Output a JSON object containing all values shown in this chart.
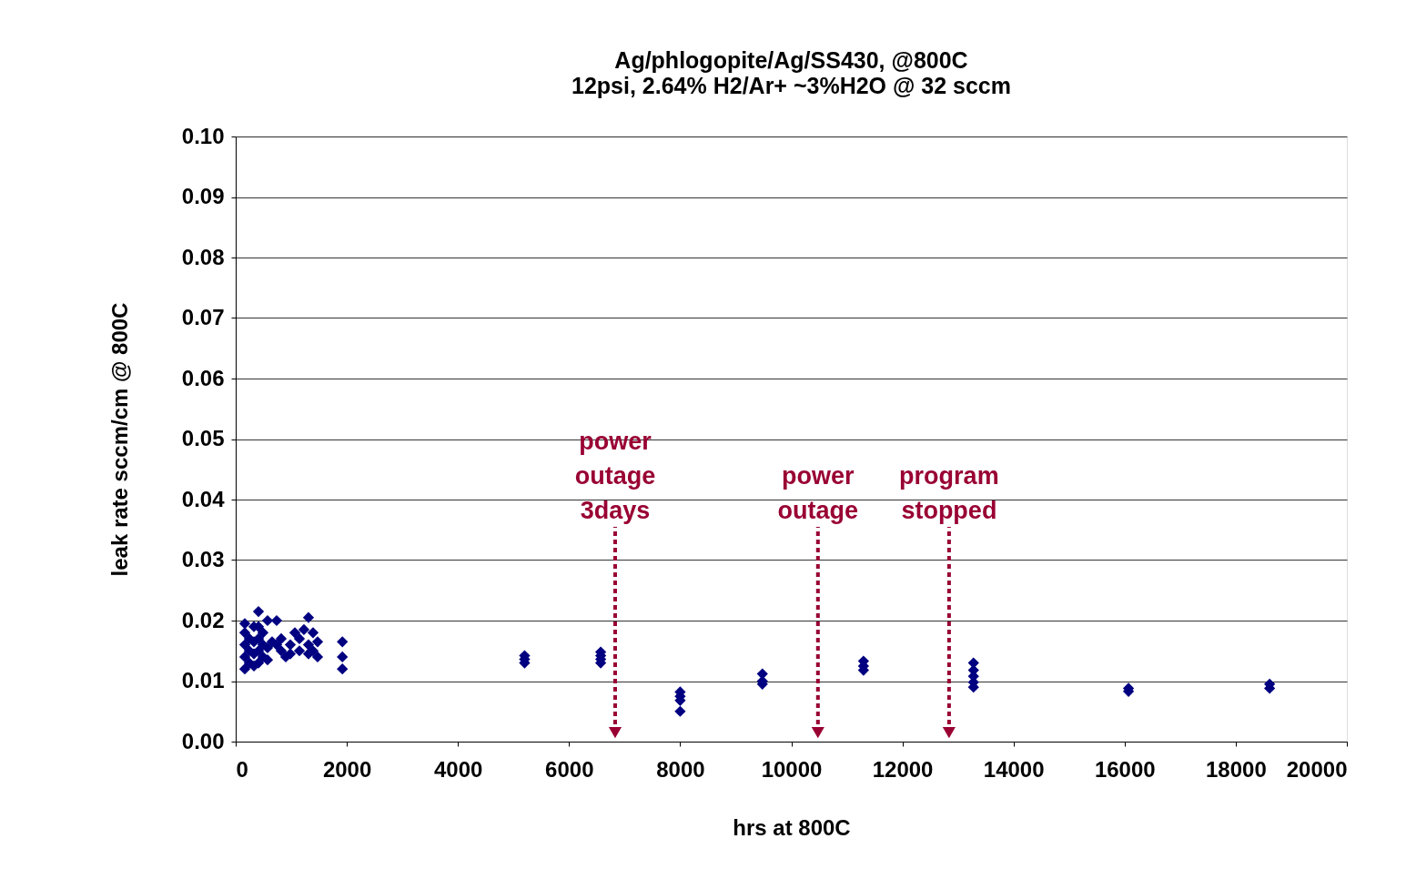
{
  "chart_data": {
    "type": "scatter",
    "title": "Ag/phlogopite/Ag/SS430, @800C",
    "subtitle": "12psi, 2.64% H2/Ar+ ~3%H2O @ 32 sccm",
    "xlabel": "hrs at 800C",
    "ylabel": "leak rate sccm/cm @ 800C",
    "xlim": [
      0,
      20000
    ],
    "xticks": [
      0,
      2000,
      4000,
      6000,
      8000,
      10000,
      12000,
      14000,
      16000,
      18000,
      20000
    ],
    "ylim": [
      0,
      0.1
    ],
    "yticks": [
      {
        "value": 0,
        "label": "0.00"
      },
      {
        "value": 0.01,
        "label": "0.01"
      },
      {
        "value": 0.02,
        "label": "0.02"
      },
      {
        "value": 0.03,
        "label": "0.03"
      },
      {
        "value": 0.04,
        "label": "0.04"
      },
      {
        "value": 0.05,
        "label": "0.05"
      },
      {
        "value": 0.06,
        "label": "0.06"
      },
      {
        "value": 0.07,
        "label": "0.07"
      },
      {
        "value": 0.08,
        "label": "0.08"
      },
      {
        "value": 0.09,
        "label": "0.09"
      },
      {
        "value": 0.1,
        "label": "0.10"
      }
    ],
    "grid": "y",
    "marker": "diamond",
    "series": [
      {
        "color": "#000080",
        "x": [
          164,
          164,
          164,
          164,
          164,
          246,
          246,
          246,
          328,
          328,
          328,
          328,
          410,
          410,
          410,
          410,
          410,
          491,
          491,
          491,
          573,
          573,
          573,
          655,
          737,
          737,
          819,
          819,
          901,
          983,
          983,
          1065,
          1147,
          1147,
          1228,
          1310,
          1310,
          1310,
          1392,
          1392,
          1474,
          1474,
          1920,
          1920,
          1920,
          5200,
          5200,
          5200,
          6570,
          6570,
          6570,
          6570,
          8000,
          8000,
          8000,
          8000,
          9480,
          9480,
          9480,
          11300,
          11300,
          11300,
          13280,
          13280,
          13280,
          13280,
          13280,
          16070,
          16070,
          18610,
          18610
        ],
        "values": [
          0.012,
          0.014,
          0.016,
          0.018,
          0.0195,
          0.013,
          0.015,
          0.017,
          0.0125,
          0.0145,
          0.0165,
          0.019,
          0.0215,
          0.013,
          0.015,
          0.017,
          0.019,
          0.014,
          0.016,
          0.018,
          0.02,
          0.0155,
          0.0135,
          0.0165,
          0.02,
          0.016,
          0.015,
          0.017,
          0.014,
          0.0145,
          0.016,
          0.018,
          0.015,
          0.017,
          0.0185,
          0.0205,
          0.016,
          0.0145,
          0.018,
          0.015,
          0.0165,
          0.014,
          0.0165,
          0.014,
          0.012,
          0.0142,
          0.0136,
          0.013,
          0.0148,
          0.0142,
          0.0136,
          0.013,
          0.0082,
          0.0075,
          0.0068,
          0.005,
          0.0112,
          0.01,
          0.0095,
          0.0133,
          0.0125,
          0.0118,
          0.013,
          0.0118,
          0.0108,
          0.0098,
          0.009,
          0.0088,
          0.0083,
          0.0095,
          0.0088
        ]
      }
    ],
    "ref_lines": [
      {
        "axis": "x",
        "value": 6830,
        "label": "power outage 3days",
        "color": "#990033",
        "line_style": "dotted"
      },
      {
        "axis": "x",
        "value": 10480,
        "label": "power outage",
        "color": "#990033",
        "line_style": "dotted"
      },
      {
        "axis": "x",
        "value": 12840,
        "label": "program stopped",
        "color": "#990033",
        "line_style": "dotted"
      }
    ]
  }
}
